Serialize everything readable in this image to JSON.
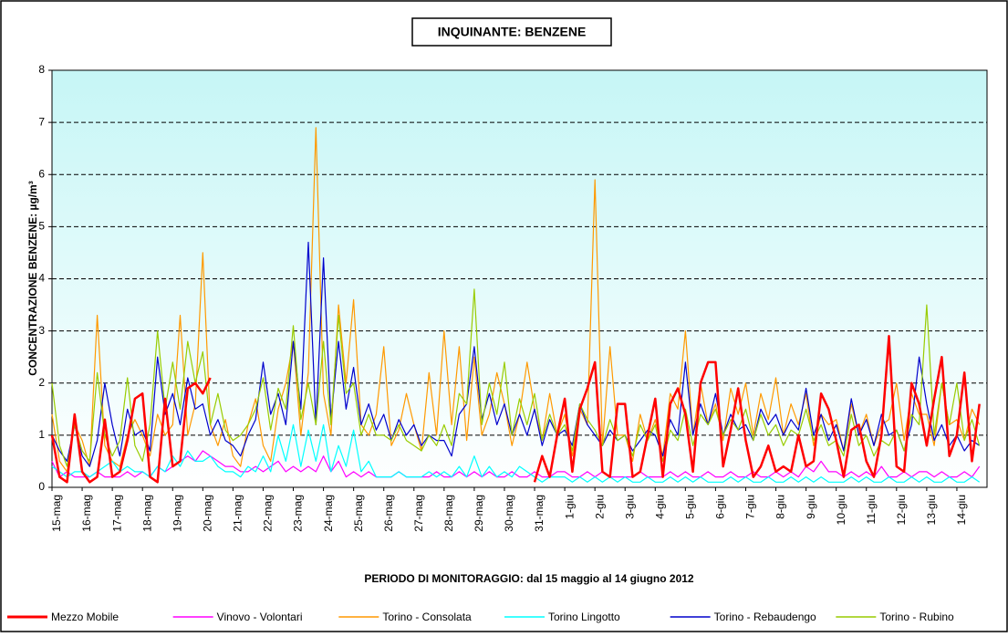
{
  "chart_data": {
    "type": "line",
    "title": "INQUINANTE: BENZENE",
    "y_label": "CONCENTRAZIONE BENZENE:  µg/m³",
    "x_label": "PERIODO DI MONITORAGGIO: dal 15 maggio al 14 giugno 2012",
    "grid": true,
    "legend": "bottom",
    "xlim": [
      0,
      31
    ],
    "ylim": [
      0,
      8
    ],
    "yticks": [
      0,
      1,
      2,
      3,
      4,
      5,
      6,
      7,
      8
    ],
    "xticks": [
      {
        "value": 0,
        "label": "15-mag"
      },
      {
        "value": 1,
        "label": "16-mag"
      },
      {
        "value": 2,
        "label": "17-mag"
      },
      {
        "value": 3,
        "label": "18-mag"
      },
      {
        "value": 4,
        "label": "19-mag"
      },
      {
        "value": 5,
        "label": "20-mag"
      },
      {
        "value": 6,
        "label": "21-mag"
      },
      {
        "value": 7,
        "label": "22-mag"
      },
      {
        "value": 8,
        "label": "23-mag"
      },
      {
        "value": 9,
        "label": "24-mag"
      },
      {
        "value": 10,
        "label": "25-mag"
      },
      {
        "value": 11,
        "label": "26-mag"
      },
      {
        "value": 12,
        "label": "27-mag"
      },
      {
        "value": 13,
        "label": "28-mag"
      },
      {
        "value": 14,
        "label": "29-mag"
      },
      {
        "value": 15,
        "label": "30-mag"
      },
      {
        "value": 16,
        "label": "31-mag"
      },
      {
        "value": 17,
        "label": "1-giu"
      },
      {
        "value": 18,
        "label": "2-giu"
      },
      {
        "value": 19,
        "label": "3-giu"
      },
      {
        "value": 20,
        "label": "4-giu"
      },
      {
        "value": 21,
        "label": "5-giu"
      },
      {
        "value": 22,
        "label": "6-giu"
      },
      {
        "value": 23,
        "label": "7-giu"
      },
      {
        "value": 24,
        "label": "8-giu"
      },
      {
        "value": 25,
        "label": "9-giu"
      },
      {
        "value": 26,
        "label": "10-giu"
      },
      {
        "value": 27,
        "label": "11-giu"
      },
      {
        "value": 28,
        "label": "12-giu"
      },
      {
        "value": 29,
        "label": "13-giu"
      },
      {
        "value": 30,
        "label": "14-giu"
      }
    ],
    "x": [
      0,
      0.25,
      0.5,
      0.75,
      1,
      1.25,
      1.5,
      1.75,
      2,
      2.25,
      2.5,
      2.75,
      3,
      3.25,
      3.5,
      3.75,
      4,
      4.25,
      4.5,
      4.75,
      5,
      5.25,
      5.5,
      5.75,
      6,
      6.25,
      6.5,
      6.75,
      7,
      7.25,
      7.5,
      7.75,
      8,
      8.25,
      8.5,
      8.75,
      9,
      9.25,
      9.5,
      9.75,
      10,
      10.25,
      10.5,
      10.75,
      11,
      11.25,
      11.5,
      11.75,
      12,
      12.25,
      12.5,
      12.75,
      13,
      13.25,
      13.5,
      13.75,
      14,
      14.25,
      14.5,
      14.75,
      15,
      15.25,
      15.5,
      15.75,
      16,
      16.25,
      16.5,
      16.75,
      17,
      17.25,
      17.5,
      17.75,
      18,
      18.25,
      18.5,
      18.75,
      19,
      19.25,
      19.5,
      19.75,
      20,
      20.25,
      20.5,
      20.75,
      21,
      21.25,
      21.5,
      21.75,
      22,
      22.25,
      22.5,
      22.75,
      23,
      23.25,
      23.5,
      23.75,
      24,
      24.25,
      24.5,
      24.75,
      25,
      25.25,
      25.5,
      25.75,
      26,
      26.25,
      26.5,
      26.75,
      27,
      27.25,
      27.5,
      27.75,
      28,
      28.25,
      28.5,
      28.75,
      29,
      29.25,
      29.5,
      29.75,
      30,
      30.25,
      30.5,
      30.75
    ],
    "series": [
      {
        "name": "Mezzo Mobile",
        "color": "#ff0000",
        "values": [
          1.0,
          0.2,
          0.1,
          1.4,
          0.3,
          0.1,
          0.2,
          1.3,
          0.2,
          0.3,
          0.9,
          1.7,
          1.8,
          0.2,
          0.1,
          1.7,
          0.4,
          0.5,
          1.9,
          2.0,
          1.8,
          2.1,
          null,
          null,
          null,
          null,
          null,
          null,
          null,
          null,
          null,
          null,
          null,
          null,
          null,
          null,
          null,
          null,
          null,
          null,
          null,
          null,
          null,
          null,
          null,
          null,
          null,
          null,
          null,
          null,
          null,
          null,
          null,
          null,
          null,
          null,
          null,
          null,
          null,
          null,
          null,
          null,
          null,
          null,
          0.1,
          0.6,
          0.2,
          1.0,
          1.7,
          0.3,
          1.5,
          1.9,
          2.4,
          0.3,
          0.2,
          1.6,
          1.6,
          0.2,
          0.3,
          1.0,
          1.7,
          0.2,
          1.6,
          1.9,
          1.4,
          0.3,
          2.0,
          2.4,
          2.4,
          0.4,
          1.1,
          1.9,
          0.9,
          0.2,
          0.4,
          0.8,
          0.3,
          0.4,
          0.3,
          1.0,
          0.4,
          0.5,
          1.8,
          1.5,
          0.9,
          0.2,
          1.1,
          1.2,
          0.5,
          0.2,
          1.0,
          2.9,
          0.4,
          0.3,
          2.0,
          1.6,
          0.8,
          1.7,
          2.5,
          0.6,
          1.0,
          2.2,
          0.5,
          1.6
        ]
      },
      {
        "name": "Vinovo - Volontari",
        "color": "#ff00ff",
        "values": [
          0.5,
          0.2,
          0.3,
          0.2,
          0.2,
          0.2,
          0.3,
          0.2,
          0.2,
          0.2,
          0.3,
          0.2,
          0.3,
          0.2,
          0.4,
          0.3,
          0.4,
          0.5,
          0.6,
          0.5,
          0.7,
          0.6,
          0.5,
          0.4,
          0.4,
          0.3,
          0.3,
          0.4,
          0.3,
          0.4,
          0.5,
          0.3,
          0.4,
          0.3,
          0.4,
          0.3,
          0.6,
          0.3,
          0.5,
          0.2,
          0.3,
          0.2,
          0.3,
          0.2,
          0.2,
          0.2,
          0.3,
          0.2,
          0.2,
          0.2,
          0.2,
          0.3,
          0.2,
          0.2,
          0.3,
          0.2,
          0.3,
          0.2,
          0.3,
          0.2,
          0.2,
          0.3,
          0.2,
          0.2,
          0.3,
          0.2,
          0.2,
          0.3,
          0.3,
          0.2,
          0.2,
          0.3,
          0.2,
          0.3,
          0.2,
          0.2,
          0.2,
          0.2,
          0.3,
          0.2,
          0.2,
          0.2,
          0.3,
          0.2,
          0.3,
          0.2,
          0.2,
          0.3,
          0.2,
          0.2,
          0.3,
          0.2,
          0.2,
          0.3,
          0.2,
          0.2,
          0.3,
          0.2,
          0.3,
          0.2,
          0.4,
          0.3,
          0.5,
          0.3,
          0.3,
          0.2,
          0.3,
          0.2,
          0.3,
          0.2,
          0.4,
          0.2,
          0.2,
          0.3,
          0.2,
          0.3,
          0.3,
          0.2,
          0.3,
          0.2,
          0.2,
          0.3,
          0.2,
          0.4
        ]
      },
      {
        "name": "Torino - Consolata",
        "color": "#ff9900",
        "values": [
          1.4,
          0.5,
          0.3,
          1.2,
          0.9,
          0.4,
          3.3,
          0.8,
          0.5,
          0.4,
          1.0,
          1.3,
          1.0,
          0.6,
          1.4,
          1.0,
          1.2,
          3.3,
          1.0,
          1.6,
          4.5,
          1.2,
          0.8,
          1.3,
          0.6,
          0.4,
          1.2,
          1.7,
          0.8,
          0.5,
          1.5,
          2.0,
          2.8,
          1.0,
          2.2,
          6.9,
          1.8,
          1.0,
          3.5,
          2.0,
          3.6,
          1.2,
          1.0,
          1.4,
          2.7,
          0.8,
          1.1,
          1.8,
          1.2,
          0.7,
          2.2,
          1.0,
          3.0,
          1.2,
          2.7,
          0.9,
          2.5,
          1.0,
          1.4,
          2.2,
          1.6,
          0.8,
          1.4,
          2.4,
          1.5,
          0.9,
          1.8,
          1.0,
          1.4,
          0.6,
          1.5,
          1.2,
          5.9,
          0.8,
          2.7,
          1.0,
          1.0,
          0.5,
          1.4,
          0.9,
          1.3,
          0.6,
          1.8,
          1.5,
          3.0,
          1.0,
          2.0,
          1.2,
          1.6,
          0.9,
          1.9,
          1.4,
          2.0,
          1.0,
          1.8,
          1.3,
          2.1,
          1.0,
          1.6,
          1.2,
          1.8,
          0.8,
          1.4,
          1.2,
          1.3,
          0.7,
          1.6,
          1.0,
          1.4,
          0.8,
          1.2,
          1.3,
          2.0,
          0.9,
          1.8,
          1.4,
          1.4,
          0.8,
          2.0,
          1.2,
          1.3,
          0.9,
          1.5,
          1.2
        ]
      },
      {
        "name": "Torino Lingotto",
        "color": "#00ffff",
        "values": [
          0.4,
          0.3,
          0.2,
          0.3,
          0.3,
          0.2,
          0.3,
          0.4,
          0.5,
          0.3,
          0.4,
          0.3,
          0.3,
          0.2,
          0.4,
          0.3,
          0.6,
          0.4,
          0.7,
          0.5,
          0.5,
          0.6,
          0.4,
          0.3,
          0.3,
          0.2,
          0.4,
          0.3,
          0.6,
          0.3,
          1.0,
          0.5,
          1.2,
          0.4,
          1.1,
          0.5,
          1.2,
          0.3,
          0.8,
          0.4,
          1.1,
          0.3,
          0.5,
          0.2,
          0.2,
          0.2,
          0.3,
          0.2,
          0.2,
          0.2,
          0.3,
          0.2,
          0.3,
          0.2,
          0.4,
          0.2,
          0.6,
          0.2,
          0.4,
          0.2,
          0.3,
          0.2,
          0.4,
          0.3,
          0.2,
          0.1,
          0.2,
          0.2,
          0.2,
          0.1,
          0.2,
          0.1,
          0.2,
          0.1,
          0.2,
          0.1,
          0.2,
          0.1,
          0.1,
          0.2,
          0.1,
          0.1,
          0.2,
          0.1,
          0.2,
          0.1,
          0.2,
          0.1,
          0.1,
          0.1,
          0.2,
          0.1,
          0.2,
          0.1,
          0.1,
          0.2,
          0.1,
          0.1,
          0.2,
          0.1,
          0.2,
          0.1,
          0.2,
          0.1,
          0.1,
          0.1,
          0.2,
          0.1,
          0.2,
          0.1,
          0.1,
          0.2,
          0.1,
          0.1,
          0.2,
          0.1,
          0.2,
          0.1,
          0.1,
          0.2,
          0.1,
          0.1,
          0.2,
          0.1
        ]
      },
      {
        "name": "Torino - Rebaudengo",
        "color": "#0000cc",
        "values": [
          1.0,
          0.7,
          0.5,
          1.2,
          0.6,
          0.4,
          0.9,
          2.0,
          1.2,
          0.6,
          1.5,
          1.0,
          1.1,
          0.7,
          2.5,
          1.4,
          1.8,
          1.2,
          2.1,
          1.5,
          1.6,
          1.0,
          1.3,
          0.9,
          0.8,
          0.6,
          1.0,
          1.3,
          2.4,
          1.4,
          1.8,
          1.2,
          2.8,
          1.5,
          4.7,
          1.2,
          4.4,
          1.3,
          2.8,
          1.5,
          2.3,
          1.2,
          1.6,
          1.1,
          1.4,
          0.9,
          1.3,
          1.0,
          1.2,
          0.8,
          1.0,
          0.9,
          0.9,
          0.6,
          1.4,
          1.6,
          2.7,
          1.3,
          1.8,
          1.2,
          1.6,
          1.0,
          1.4,
          1.0,
          1.5,
          0.8,
          1.3,
          1.0,
          1.1,
          0.8,
          1.6,
          1.2,
          1.0,
          0.8,
          1.1,
          0.9,
          1.0,
          0.7,
          0.9,
          1.1,
          1.0,
          0.6,
          1.3,
          1.0,
          2.4,
          1.0,
          1.6,
          1.2,
          1.8,
          1.0,
          1.4,
          1.1,
          1.2,
          0.9,
          1.5,
          1.2,
          1.4,
          1.0,
          1.3,
          1.1,
          1.9,
          1.0,
          1.4,
          0.9,
          1.2,
          0.7,
          1.7,
          1.0,
          1.3,
          0.8,
          1.4,
          1.0,
          1.1,
          0.7,
          1.2,
          2.5,
          1.6,
          0.9,
          1.2,
          0.8,
          1.0,
          0.7,
          0.9,
          0.8
        ]
      },
      {
        "name": "Torino - Rubino",
        "color": "#99cc00",
        "values": [
          2.0,
          0.8,
          0.4,
          1.2,
          0.7,
          0.5,
          2.2,
          1.0,
          0.6,
          0.9,
          2.1,
          0.8,
          0.5,
          1.2,
          3.0,
          1.5,
          2.4,
          1.5,
          2.8,
          2.0,
          2.6,
          1.2,
          1.8,
          1.1,
          0.9,
          1.0,
          1.2,
          1.5,
          2.1,
          1.1,
          1.9,
          1.5,
          3.1,
          1.3,
          2.0,
          1.2,
          2.8,
          1.2,
          3.3,
          1.8,
          2.0,
          1.0,
          1.4,
          1.0,
          1.0,
          0.9,
          1.2,
          0.9,
          0.8,
          0.7,
          1.0,
          0.8,
          1.2,
          0.8,
          1.8,
          1.6,
          3.8,
          1.2,
          2.0,
          1.4,
          2.4,
          1.0,
          1.7,
          1.2,
          1.8,
          0.9,
          1.4,
          1.0,
          1.2,
          0.7,
          1.6,
          1.3,
          1.1,
          0.8,
          1.3,
          0.9,
          1.0,
          0.6,
          1.2,
          0.9,
          1.2,
          0.5,
          1.1,
          0.9,
          1.5,
          0.8,
          1.4,
          1.2,
          1.5,
          1.0,
          1.3,
          1.1,
          1.5,
          0.9,
          1.4,
          1.0,
          1.2,
          0.8,
          1.1,
          1.0,
          1.5,
          0.9,
          1.2,
          0.8,
          0.9,
          0.6,
          1.4,
          0.8,
          1.0,
          0.6,
          0.9,
          0.8,
          1.1,
          0.7,
          1.4,
          1.2,
          3.5,
          1.0,
          2.0,
          1.2,
          2.0,
          0.9,
          1.3,
          0.8
        ]
      }
    ]
  }
}
